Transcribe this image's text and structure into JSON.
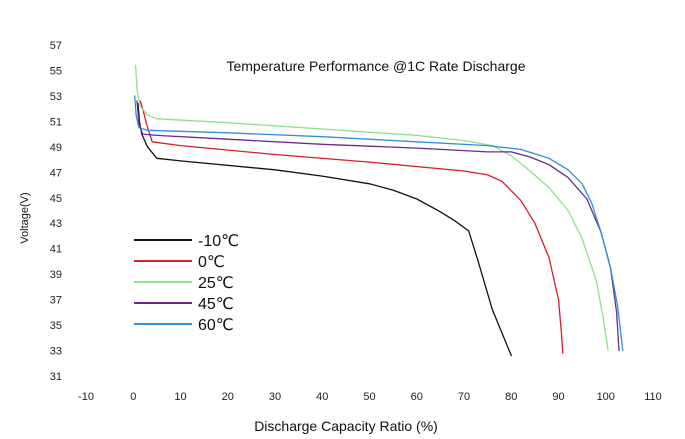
{
  "chart_data": {
    "type": "line",
    "title": "Temperature Performance @1C Rate Discharge",
    "xlabel": "Discharge Capacity Ratio (%)",
    "ylabel": "Voltage(V)",
    "xlim": [
      -13,
      114
    ],
    "ylim": [
      30.5,
      58
    ],
    "xticks": [
      -10,
      0,
      10,
      20,
      30,
      40,
      50,
      60,
      70,
      80,
      90,
      100,
      110
    ],
    "yticks": [
      31,
      33,
      35,
      37,
      39,
      41,
      43,
      45,
      47,
      49,
      51,
      53,
      55,
      57
    ],
    "grid": false,
    "legend_position": "lower-left",
    "series": [
      {
        "name": "-10℃",
        "color": "#111111",
        "points": [
          [
            1,
            52.4
          ],
          [
            1.3,
            51
          ],
          [
            1.8,
            50
          ],
          [
            3,
            49
          ],
          [
            5,
            48.1
          ],
          [
            10,
            47.9
          ],
          [
            30,
            47.2
          ],
          [
            40,
            46.7
          ],
          [
            50,
            46.1
          ],
          [
            55,
            45.6
          ],
          [
            60,
            44.9
          ],
          [
            65,
            43.9
          ],
          [
            68,
            43.2
          ],
          [
            71,
            42.4
          ],
          [
            73,
            40
          ],
          [
            76,
            36.2
          ],
          [
            80,
            32.6
          ]
        ]
      },
      {
        "name": "0℃",
        "color": "#d81e2b",
        "points": [
          [
            1.5,
            52.6
          ],
          [
            2,
            52
          ],
          [
            2.8,
            50.8
          ],
          [
            4,
            49.4
          ],
          [
            10,
            49.1
          ],
          [
            30,
            48.4
          ],
          [
            50,
            47.8
          ],
          [
            70,
            47.1
          ],
          [
            75,
            46.8
          ],
          [
            78,
            46.3
          ],
          [
            82,
            44.8
          ],
          [
            85,
            43
          ],
          [
            88,
            40.3
          ],
          [
            90,
            37
          ],
          [
            90.6,
            34.5
          ],
          [
            90.9,
            32.8
          ]
        ]
      },
      {
        "name": "25℃",
        "color": "#8fe08c",
        "points": [
          [
            0.5,
            55.4
          ],
          [
            0.8,
            53.5
          ],
          [
            1.5,
            52.2
          ],
          [
            3,
            51.5
          ],
          [
            5,
            51.2
          ],
          [
            20,
            50.9
          ],
          [
            40,
            50.4
          ],
          [
            60,
            49.9
          ],
          [
            70,
            49.5
          ],
          [
            76,
            49.1
          ],
          [
            80,
            48.3
          ],
          [
            84,
            47.1
          ],
          [
            88,
            45.8
          ],
          [
            92,
            44
          ],
          [
            95,
            41.8
          ],
          [
            98,
            38.5
          ],
          [
            99.5,
            35.5
          ],
          [
            100.5,
            33
          ]
        ]
      },
      {
        "name": "45℃",
        "color": "#6a2a8a",
        "points": [
          [
            0.8,
            52.6
          ],
          [
            1.2,
            50.8
          ],
          [
            2,
            50
          ],
          [
            5,
            49.9
          ],
          [
            20,
            49.6
          ],
          [
            40,
            49.2
          ],
          [
            60,
            48.9
          ],
          [
            75,
            48.6
          ],
          [
            80,
            48.6
          ],
          [
            84,
            48.2
          ],
          [
            88,
            47.6
          ],
          [
            92,
            46.6
          ],
          [
            96,
            44.9
          ],
          [
            99,
            42.3
          ],
          [
            101,
            39.5
          ],
          [
            102.3,
            36
          ],
          [
            102.8,
            33
          ]
        ]
      },
      {
        "name": "60℃",
        "color": "#2f8fd8",
        "points": [
          [
            0.3,
            53
          ],
          [
            0.6,
            51.5
          ],
          [
            1.2,
            50.5
          ],
          [
            3,
            50.3
          ],
          [
            20,
            50.1
          ],
          [
            40,
            49.8
          ],
          [
            60,
            49.4
          ],
          [
            75,
            49.1
          ],
          [
            82,
            48.8
          ],
          [
            88,
            48.1
          ],
          [
            92,
            47.2
          ],
          [
            95,
            46.1
          ],
          [
            97,
            44.6
          ],
          [
            99,
            42.3
          ],
          [
            101,
            39.5
          ],
          [
            102.5,
            36.5
          ],
          [
            103.3,
            34
          ],
          [
            103.6,
            33
          ]
        ]
      }
    ]
  }
}
